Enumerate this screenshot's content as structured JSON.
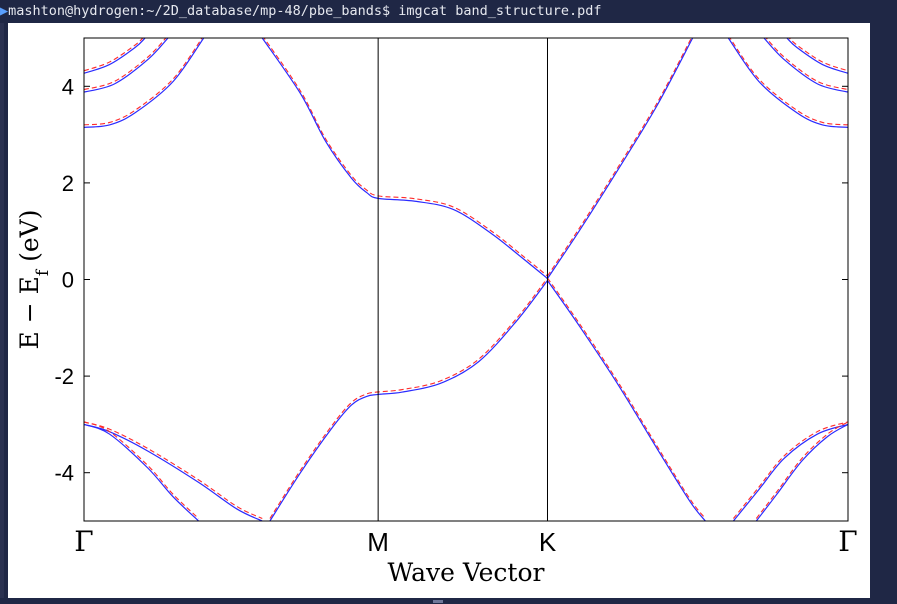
{
  "terminal": {
    "prompt": "mashton@hydrogen:~/2D_database/mp-48/pbe_bands$",
    "command": "imgcat band_structure.pdf"
  },
  "colors": {
    "terminal_background": "#1f2745",
    "band_solid": "#2b2bff",
    "band_dashed": "#ff2b2b",
    "axes": "#000000"
  },
  "chart_data": {
    "type": "line",
    "xlabel": "Wave Vector",
    "ylabel": "E − E_f (eV)",
    "ylabel_main": "E  −  E",
    "ylabel_sub": "f",
    "ylabel_unit": " (eV)",
    "ylim": [
      -5,
      5
    ],
    "xlim": [
      0,
      3
    ],
    "yticks": [
      -4,
      -2,
      0,
      2,
      4
    ],
    "ytick_labels": [
      "-4",
      "-2",
      "0",
      "2",
      "4"
    ],
    "kpoints": [
      {
        "label": "Γ",
        "x": 0,
        "style": "serif"
      },
      {
        "label": "M",
        "x": 1.155,
        "style": "sans"
      },
      {
        "label": "K",
        "x": 1.82,
        "style": "sans"
      },
      {
        "label": "Γ",
        "x": 3.0,
        "style": "serif"
      }
    ],
    "grid": false,
    "series": [
      {
        "style": "solid",
        "points": [
          [
            0,
            -3.0
          ],
          [
            0.1,
            -3.15
          ],
          [
            0.25,
            -3.55
          ],
          [
            0.45,
            -4.2
          ],
          [
            0.6,
            -4.75
          ],
          [
            0.7,
            -5.0
          ]
        ]
      },
      {
        "style": "solid",
        "points": [
          [
            0,
            -3.0
          ],
          [
            0.1,
            -3.2
          ],
          [
            0.25,
            -3.9
          ],
          [
            0.35,
            -4.5
          ],
          [
            0.45,
            -5.0
          ]
        ]
      },
      {
        "style": "solid",
        "points": [
          [
            0.73,
            -5.0
          ],
          [
            0.85,
            -4.0
          ],
          [
            0.97,
            -3.1
          ],
          [
            1.05,
            -2.6
          ],
          [
            1.11,
            -2.42
          ],
          [
            1.155,
            -2.38
          ],
          [
            1.25,
            -2.33
          ],
          [
            1.4,
            -2.15
          ],
          [
            1.55,
            -1.7
          ],
          [
            1.7,
            -0.85
          ],
          [
            1.82,
            -0.02
          ]
        ]
      },
      {
        "style": "solid",
        "points": [
          [
            0.7,
            5.0
          ],
          [
            0.85,
            3.85
          ],
          [
            0.95,
            2.85
          ],
          [
            1.05,
            2.1
          ],
          [
            1.11,
            1.8
          ],
          [
            1.155,
            1.68
          ],
          [
            1.3,
            1.62
          ],
          [
            1.45,
            1.45
          ],
          [
            1.6,
            0.95
          ],
          [
            1.72,
            0.45
          ],
          [
            1.82,
            0.02
          ]
        ]
      },
      {
        "style": "solid",
        "points": [
          [
            1.82,
            -0.02
          ],
          [
            1.95,
            -1.0
          ],
          [
            2.1,
            -2.2
          ],
          [
            2.25,
            -3.5
          ],
          [
            2.38,
            -4.6
          ],
          [
            2.44,
            -5.0
          ]
        ]
      },
      {
        "style": "solid",
        "points": [
          [
            1.82,
            0.02
          ],
          [
            1.95,
            1.05
          ],
          [
            2.1,
            2.3
          ],
          [
            2.25,
            3.6
          ],
          [
            2.39,
            5.0
          ]
        ]
      },
      {
        "style": "solid",
        "points": [
          [
            2.55,
            -5.0
          ],
          [
            2.65,
            -4.35
          ],
          [
            2.75,
            -3.7
          ],
          [
            2.88,
            -3.2
          ],
          [
            3.0,
            -3.0
          ]
        ]
      },
      {
        "style": "solid",
        "points": [
          [
            2.64,
            -5.0
          ],
          [
            2.72,
            -4.45
          ],
          [
            2.82,
            -3.75
          ],
          [
            2.92,
            -3.25
          ],
          [
            3.0,
            -3.0
          ]
        ]
      },
      {
        "style": "solid",
        "points": [
          [
            0,
            3.15
          ],
          [
            0.1,
            3.2
          ],
          [
            0.2,
            3.45
          ],
          [
            0.35,
            4.1
          ],
          [
            0.47,
            5.0
          ]
        ]
      },
      {
        "style": "solid",
        "points": [
          [
            0,
            3.88
          ],
          [
            0.12,
            4.05
          ],
          [
            0.25,
            4.55
          ],
          [
            0.33,
            5.0
          ]
        ]
      },
      {
        "style": "solid",
        "points": [
          [
            0,
            4.27
          ],
          [
            0.1,
            4.45
          ],
          [
            0.2,
            4.8
          ],
          [
            0.24,
            5.0
          ]
        ]
      },
      {
        "style": "solid",
        "points": [
          [
            2.53,
            5.0
          ],
          [
            2.65,
            4.1
          ],
          [
            2.8,
            3.45
          ],
          [
            2.9,
            3.2
          ],
          [
            3.0,
            3.15
          ]
        ]
      },
      {
        "style": "solid",
        "points": [
          [
            2.67,
            5.0
          ],
          [
            2.75,
            4.55
          ],
          [
            2.88,
            4.05
          ],
          [
            3.0,
            3.88
          ]
        ]
      },
      {
        "style": "solid",
        "points": [
          [
            2.76,
            5.0
          ],
          [
            2.8,
            4.8
          ],
          [
            2.9,
            4.45
          ],
          [
            3.0,
            4.27
          ]
        ]
      }
    ]
  }
}
